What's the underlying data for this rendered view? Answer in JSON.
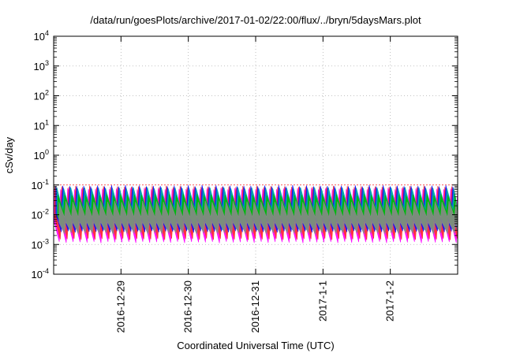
{
  "chart_data": {
    "type": "line",
    "title": "/data/run/goesPlots/archive/2017-01-02/22:00/flux/../bryn/5daysMars.plot",
    "xlabel": "Coordinated Universal Time (UTC)",
    "ylabel": "cSv/day",
    "yscale": "log",
    "ylim": [
      0.0001,
      10000
    ],
    "yticks": [
      {
        "value": 0.0001,
        "base": "10",
        "exp": "-4"
      },
      {
        "value": 0.001,
        "base": "10",
        "exp": "-3"
      },
      {
        "value": 0.01,
        "base": "10",
        "exp": "-2"
      },
      {
        "value": 0.1,
        "base": "10",
        "exp": "-1"
      },
      {
        "value": 1,
        "base": "10",
        "exp": "0"
      },
      {
        "value": 10,
        "base": "10",
        "exp": "1"
      },
      {
        "value": 100,
        "base": "10",
        "exp": "2"
      },
      {
        "value": 1000,
        "base": "10",
        "exp": "3"
      },
      {
        "value": 10000,
        "base": "10",
        "exp": "4"
      }
    ],
    "xlim": [
      "2016-12-28 00:00",
      "2017-01-03 00:00"
    ],
    "xticks": [
      "2016-12-29",
      "2016-12-30",
      "2016-12-31",
      "2017-1-1",
      "2017-1-2"
    ],
    "grid": true,
    "series": [
      {
        "color": "#ff00ff",
        "min": 0.0011,
        "max": 0.08
      },
      {
        "color": "#ff3030",
        "min": 0.0014,
        "max": 0.095
      },
      {
        "color": "#1010ff",
        "min": 0.0025,
        "max": 0.1
      },
      {
        "color": "#00aaaa",
        "min": 0.003,
        "max": 0.085
      },
      {
        "color": "#00bb00",
        "min": 0.003,
        "max": 0.05
      },
      {
        "color": "#888888",
        "min": 0.0022,
        "max": 0.03
      }
    ],
    "cycles": 58
  }
}
